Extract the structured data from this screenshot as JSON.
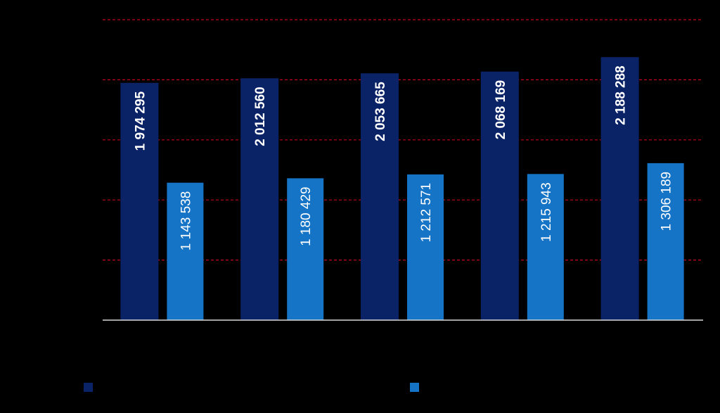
{
  "chart_data": {
    "type": "bar",
    "title": "",
    "xlabel": "",
    "ylabel": "",
    "ylim": [
      0,
      2500000
    ],
    "grid": true,
    "legend_position": "bottom",
    "categories": [
      "",
      "",
      "",
      "",
      ""
    ],
    "series": [
      {
        "color": "#0a2366",
        "values": [
          1974295,
          2012560,
          2053665,
          2068169,
          2188288
        ],
        "labels": [
          "1 974 295",
          "2 012 560",
          "2 053 665",
          "2 068 169",
          "2 188 288"
        ]
      },
      {
        "color": "#1674c6",
        "values": [
          1143538,
          1180429,
          1212571,
          1215943,
          1306189
        ],
        "labels": [
          "1 143 538",
          "1 180 429",
          "1 212 571",
          "1 215 943",
          "1 306 189"
        ]
      }
    ]
  }
}
